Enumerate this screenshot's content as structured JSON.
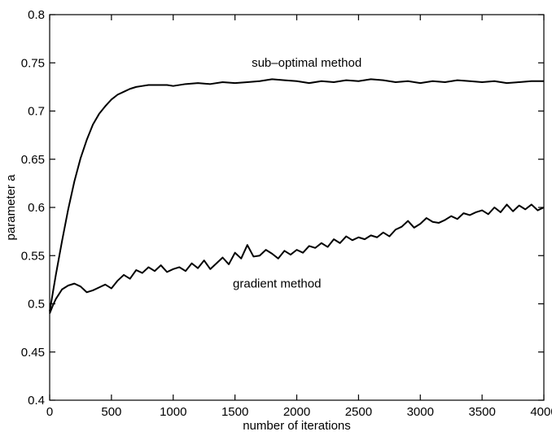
{
  "chart_data": {
    "type": "line",
    "xlabel": "number of iterations",
    "ylabel": "parameter a",
    "xlim": [
      0,
      4000
    ],
    "ylim": [
      0.4,
      0.8
    ],
    "xticks": [
      0,
      500,
      1000,
      1500,
      2000,
      2500,
      3000,
      3500,
      4000
    ],
    "xtick_labels": [
      "0",
      "500",
      "1000",
      "1500",
      "2000",
      "2500",
      "3000",
      "3500",
      "4000"
    ],
    "yticks": [
      0.4,
      0.45,
      0.5,
      0.55,
      0.6,
      0.65,
      0.7,
      0.75,
      0.8
    ],
    "ytick_labels": [
      "0.4",
      "0.45",
      "0.5",
      "0.55",
      "0.6",
      "0.65",
      "0.7",
      "0.75",
      "0.8"
    ],
    "grid": false,
    "legend": "none",
    "annotations": [
      {
        "text": "sub–optimal method",
        "x": 2080,
        "y": 0.746
      },
      {
        "text": "gradient method",
        "x": 1840,
        "y": 0.517
      }
    ],
    "series": [
      {
        "x": [
          0,
          50,
          100,
          150,
          200,
          250,
          300,
          350,
          400,
          450,
          500,
          550,
          600,
          650,
          700,
          750,
          800,
          850,
          900,
          950,
          1000,
          1100,
          1200,
          1300,
          1400,
          1500,
          1600,
          1700,
          1800,
          1900,
          2000,
          2100,
          2200,
          2300,
          2400,
          2500,
          2600,
          2700,
          2800,
          2900,
          3000,
          3100,
          3200,
          3300,
          3400,
          3500,
          3600,
          3700,
          3800,
          3900,
          4000
        ],
        "values": [
          0.492,
          0.53,
          0.565,
          0.598,
          0.627,
          0.651,
          0.67,
          0.686,
          0.697,
          0.705,
          0.712,
          0.717,
          0.72,
          0.723,
          0.725,
          0.726,
          0.727,
          0.727,
          0.727,
          0.727,
          0.726,
          0.728,
          0.729,
          0.728,
          0.73,
          0.729,
          0.73,
          0.731,
          0.733,
          0.732,
          0.731,
          0.729,
          0.731,
          0.73,
          0.732,
          0.731,
          0.733,
          0.732,
          0.73,
          0.731,
          0.729,
          0.731,
          0.73,
          0.732,
          0.731,
          0.73,
          0.731,
          0.729,
          0.73,
          0.731,
          0.731
        ]
      },
      {
        "x": [
          0,
          25,
          50,
          75,
          100,
          150,
          200,
          250,
          300,
          350,
          400,
          450,
          500,
          550,
          600,
          650,
          700,
          750,
          800,
          850,
          900,
          950,
          1000,
          1050,
          1100,
          1150,
          1200,
          1250,
          1300,
          1350,
          1400,
          1450,
          1500,
          1550,
          1600,
          1650,
          1700,
          1750,
          1800,
          1850,
          1900,
          1950,
          2000,
          2050,
          2100,
          2150,
          2200,
          2250,
          2300,
          2350,
          2400,
          2450,
          2500,
          2550,
          2600,
          2650,
          2700,
          2750,
          2800,
          2850,
          2900,
          2950,
          3000,
          3050,
          3100,
          3150,
          3200,
          3250,
          3300,
          3350,
          3400,
          3450,
          3500,
          3550,
          3600,
          3650,
          3700,
          3750,
          3800,
          3850,
          3900,
          3950,
          4000
        ],
        "values": [
          0.49,
          0.498,
          0.505,
          0.51,
          0.515,
          0.519,
          0.521,
          0.518,
          0.512,
          0.514,
          0.517,
          0.52,
          0.516,
          0.524,
          0.53,
          0.526,
          0.535,
          0.532,
          0.538,
          0.534,
          0.54,
          0.533,
          0.536,
          0.538,
          0.534,
          0.542,
          0.537,
          0.545,
          0.536,
          0.542,
          0.548,
          0.541,
          0.553,
          0.547,
          0.561,
          0.549,
          0.55,
          0.556,
          0.552,
          0.547,
          0.555,
          0.551,
          0.556,
          0.553,
          0.56,
          0.558,
          0.563,
          0.559,
          0.567,
          0.563,
          0.57,
          0.566,
          0.569,
          0.567,
          0.571,
          0.569,
          0.574,
          0.57,
          0.577,
          0.58,
          0.586,
          0.579,
          0.583,
          0.589,
          0.585,
          0.584,
          0.587,
          0.591,
          0.588,
          0.594,
          0.592,
          0.595,
          0.597,
          0.593,
          0.6,
          0.595,
          0.603,
          0.596,
          0.602,
          0.598,
          0.603,
          0.597,
          0.6
        ]
      }
    ]
  }
}
